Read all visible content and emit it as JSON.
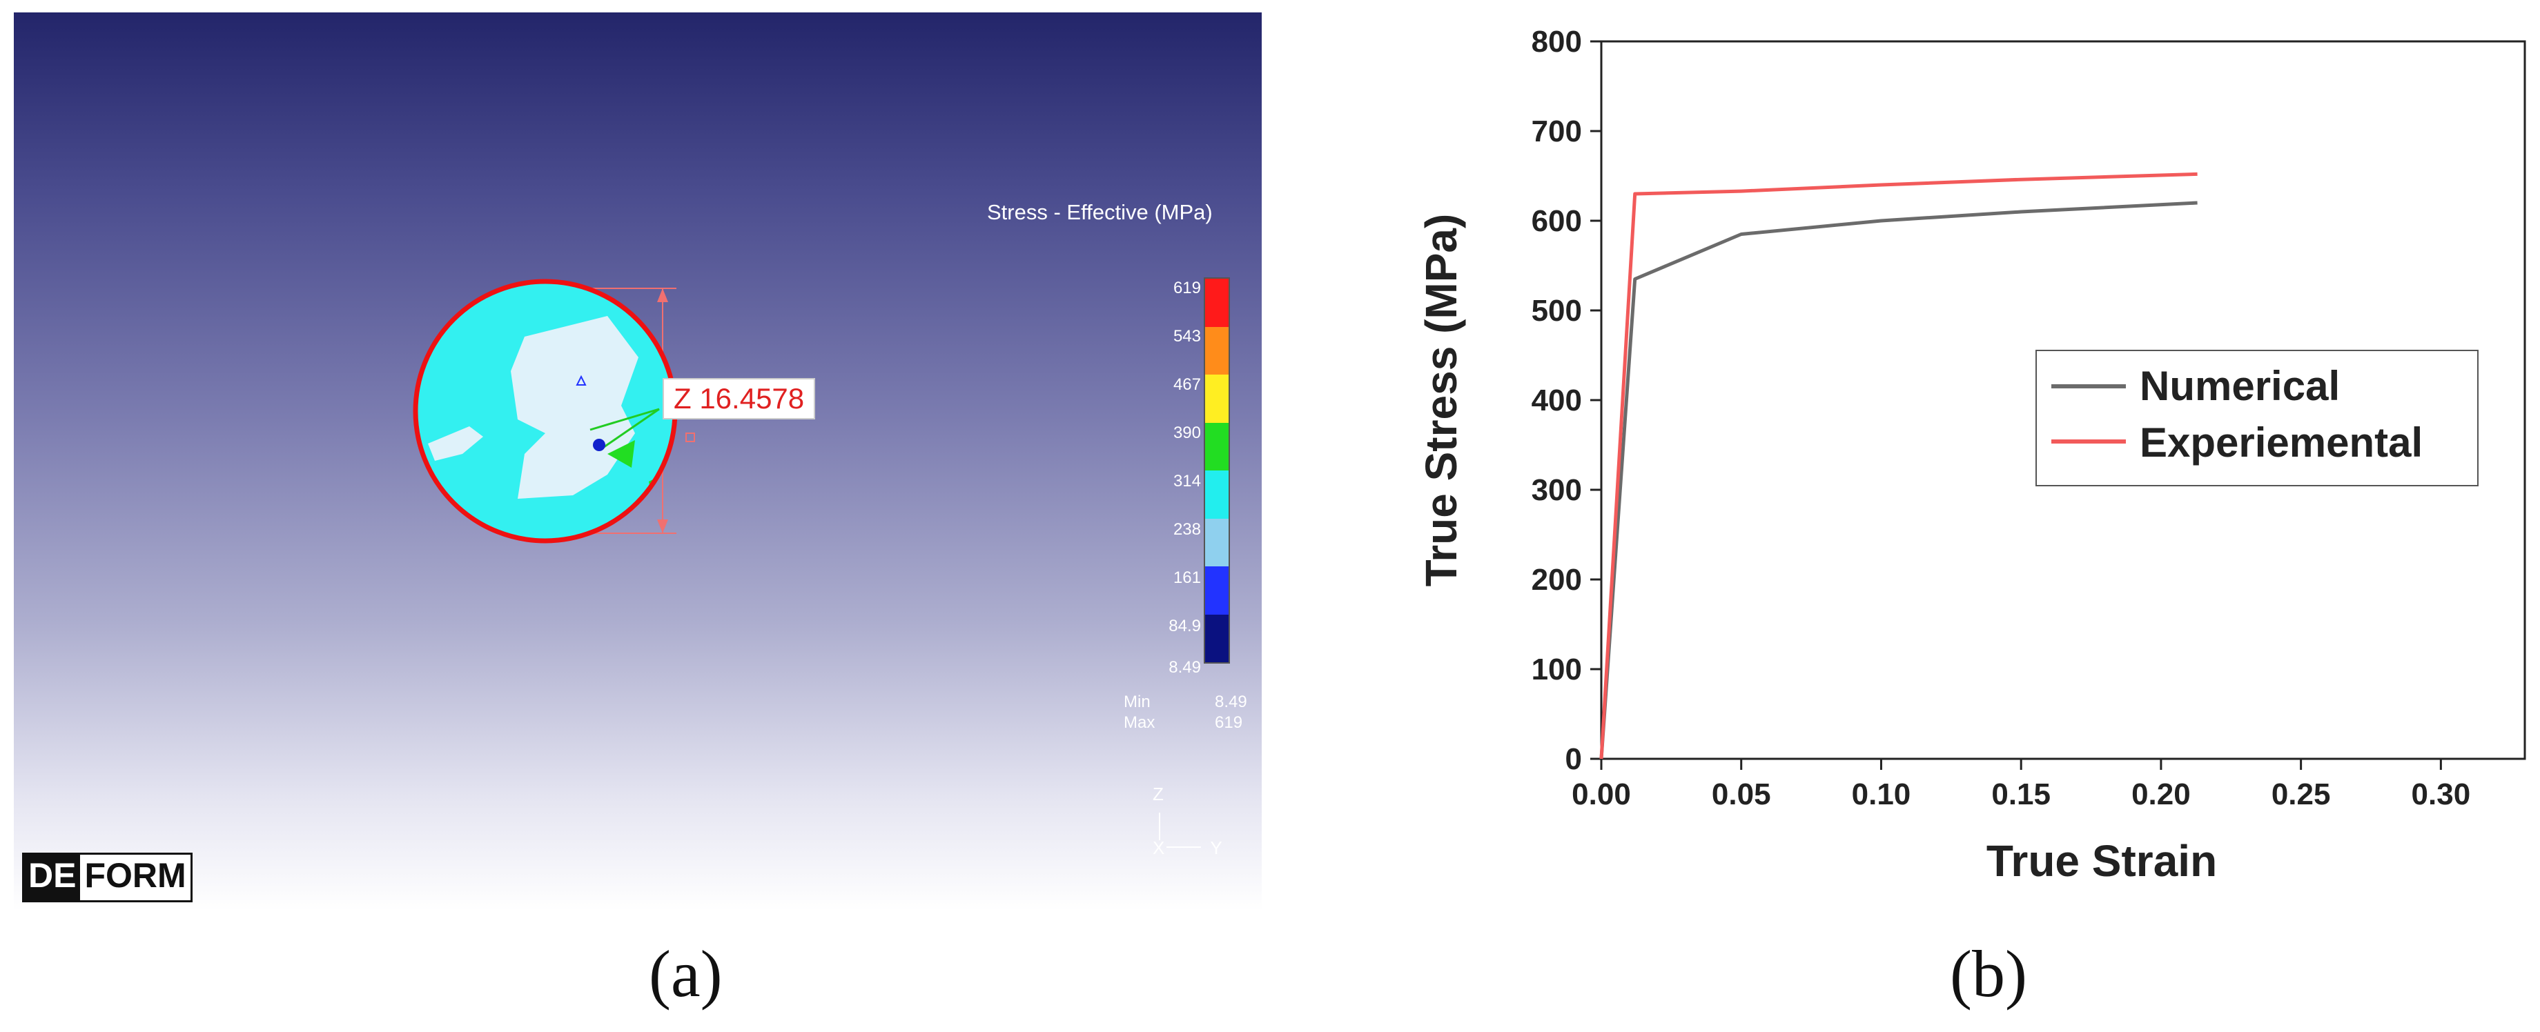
{
  "panel_a": {
    "caption": "(a)",
    "dimension_readout": "Z 16.4578",
    "legend": {
      "title": "Stress - Effective (MPa)",
      "labels": [
        "619",
        "543",
        "467",
        "390",
        "314",
        "238",
        "161",
        "84.9",
        "8.49"
      ],
      "colors": [
        "#ff1a1a",
        "#ff8c1a",
        "#ffee22",
        "#22dd22",
        "#22eeee",
        "#8fd0ee",
        "#2233ff",
        "#0a1180"
      ],
      "min_label": "Min",
      "min_value": "8.49",
      "max_label": "Max",
      "max_value": "619"
    },
    "axis_triad": {
      "z": "Z",
      "x": "X",
      "y": "Y"
    },
    "logo": {
      "left": "DE",
      "right": "FORM"
    }
  },
  "panel_b": {
    "caption": "(b)",
    "chart_data": {
      "type": "line",
      "xlabel": "True Strain",
      "ylabel": "True Stress (MPa)",
      "xlim": [
        0,
        0.33
      ],
      "ylim": [
        0,
        800
      ],
      "x_ticks": [
        "0.00",
        "0.05",
        "0.10",
        "0.15",
        "0.20",
        "0.25",
        "0.30"
      ],
      "y_ticks": [
        "0",
        "100",
        "200",
        "300",
        "400",
        "500",
        "600",
        "700",
        "800"
      ],
      "legend_position": "center-right",
      "series": [
        {
          "name": "Numerical",
          "color": "#6b6b6b",
          "points": [
            [
              0.0,
              0
            ],
            [
              0.012,
              535
            ],
            [
              0.05,
              585
            ],
            [
              0.1,
              600
            ],
            [
              0.15,
              610
            ],
            [
              0.213,
              620
            ]
          ]
        },
        {
          "name": "Experiemental",
          "color": "#f25a5a",
          "points": [
            [
              0.0,
              0
            ],
            [
              0.012,
              630
            ],
            [
              0.05,
              633
            ],
            [
              0.1,
              640
            ],
            [
              0.15,
              646
            ],
            [
              0.213,
              652
            ]
          ]
        }
      ]
    }
  }
}
